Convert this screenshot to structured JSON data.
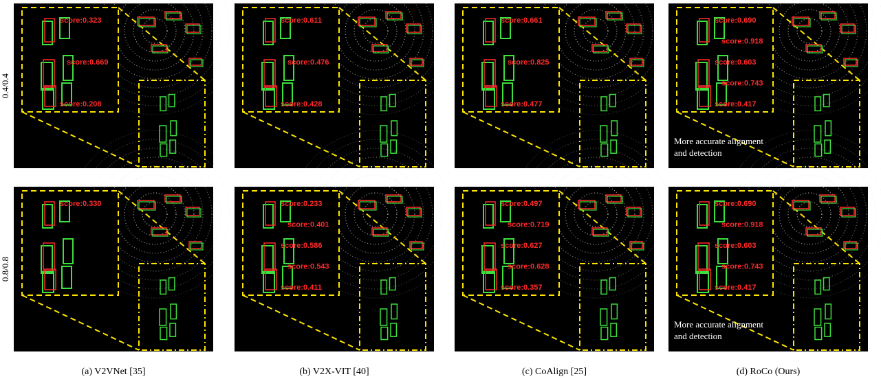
{
  "rows": [
    {
      "label": "0.4/0.4",
      "panels": [
        {
          "scores": [
            "score:0.323",
            "score:0.669",
            "score:0.208"
          ]
        },
        {
          "scores": [
            "score:0.611",
            "score:0.476",
            "score:0.428"
          ]
        },
        {
          "scores": [
            "score:0.661",
            "score:0.825",
            "score:0.477"
          ]
        },
        {
          "scores": [
            "score:0.690",
            "score:0.918",
            "score:0.603",
            "score:0.743",
            "score:0.417"
          ],
          "note": [
            "More accurate alignment",
            "and detection"
          ]
        }
      ]
    },
    {
      "label": "0.8/0.8",
      "panels": [
        {
          "scores": [
            "score:0.330"
          ]
        },
        {
          "scores": [
            "score:0.233",
            "score:0.401",
            "score:0.586",
            "score:0.543",
            "score:0.411"
          ]
        },
        {
          "scores": [
            "score:0.497",
            "score:0.719",
            "score:0.627",
            "score:0.628",
            "score:0.357"
          ]
        },
        {
          "scores": [
            "score:0.690",
            "score:0.918",
            "score:0.603",
            "score:0.743",
            "score:0.417"
          ],
          "note": [
            "More accurate alignment",
            "and detection"
          ]
        }
      ]
    }
  ],
  "captions": [
    "(a) V2VNet [35]",
    "(b) V2X-VIT [40]",
    "(c) CoAlign [25]",
    "(d) RoCo (Ours)"
  ]
}
